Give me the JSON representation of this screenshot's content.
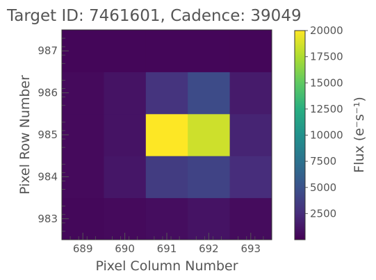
{
  "chart_data": {
    "type": "heatmap",
    "title": "Target ID: 7461601, Cadence: 39049",
    "xlabel": "Pixel Column Number",
    "ylabel": "Pixel Row Number",
    "x_categories": [
      "689",
      "690",
      "691",
      "692",
      "693"
    ],
    "y_categories": [
      "983",
      "984",
      "985",
      "986",
      "987"
    ],
    "xlim": [
      688.5,
      693.5
    ],
    "ylim": [
      982.5,
      987.5
    ],
    "values": [
      [
        400,
        500,
        700,
        1000,
        600
      ],
      [
        500,
        1200,
        3500,
        4000,
        2500
      ],
      [
        500,
        1000,
        20000,
        18500,
        2000
      ],
      [
        500,
        1000,
        3000,
        4500,
        1500
      ],
      [
        300,
        300,
        300,
        300,
        300
      ]
    ],
    "colormap": "viridis",
    "colorbar": {
      "label": "Flux (e⁻s⁻¹)",
      "vmin": 0,
      "vmax": 20000,
      "ticks": [
        "2500",
        "5000",
        "7500",
        "10000",
        "12500",
        "15000",
        "17500",
        "20000"
      ]
    },
    "grid": false
  }
}
